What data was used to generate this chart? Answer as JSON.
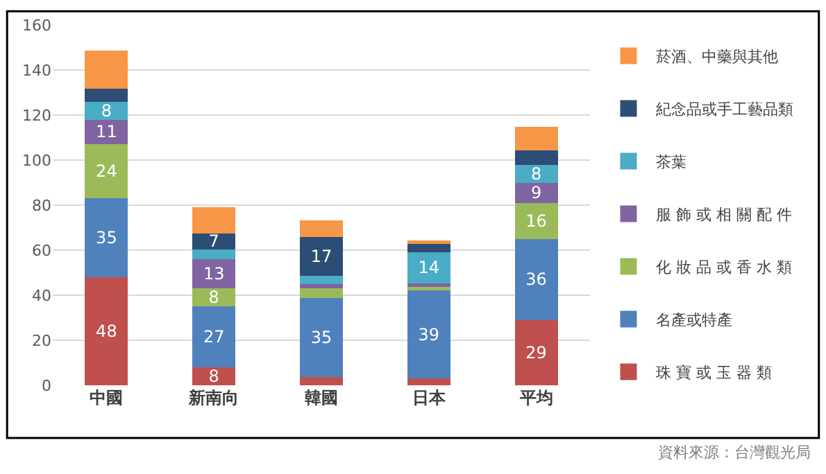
{
  "chart_data": {
    "type": "bar",
    "stacked": true,
    "categories": [
      "中國",
      "新南向",
      "韓國",
      "日本",
      "平均"
    ],
    "series": [
      {
        "name": "珠 寶 或 玉 器 類",
        "color": "#c0504d",
        "values": [
          48,
          8,
          3.7,
          3.1,
          29
        ],
        "value_labels": [
          "48",
          "8",
          null,
          null,
          "29"
        ]
      },
      {
        "name": "名產或特產",
        "color": "#4f81bd",
        "values": [
          35,
          27,
          35,
          39,
          36
        ],
        "value_labels": [
          "35",
          "27",
          "35",
          "39",
          "36"
        ]
      },
      {
        "name": "化 妝 品 或 香 水 類",
        "color": "#9bbb59",
        "values": [
          24,
          8,
          4.4,
          1.5,
          16
        ],
        "value_labels": [
          "24",
          "8",
          null,
          null,
          "16"
        ]
      },
      {
        "name": "服 飾 或 相 關 配 件",
        "color": "#8064a2",
        "values": [
          11,
          13,
          1.8,
          1.6,
          9
        ],
        "value_labels": [
          "11",
          "13",
          null,
          null,
          "9"
        ]
      },
      {
        "name": "茶葉",
        "color": "#4bacc6",
        "values": [
          8,
          4.4,
          3.8,
          14,
          8
        ],
        "value_labels": [
          "8",
          null,
          null,
          "14",
          "8"
        ]
      },
      {
        "name": "紀念品或手工藝品類",
        "color": "#2c4d75",
        "values": [
          5.7,
          7,
          17,
          3.8,
          6.2
        ],
        "value_labels": [
          null,
          "7",
          "17",
          null,
          null
        ]
      },
      {
        "name": "菸酒、中藥與其他",
        "color": "#f79646",
        "values": [
          16.8,
          11.8,
          7.4,
          1.2,
          10.6
        ],
        "value_labels": [
          null,
          null,
          null,
          null,
          null
        ]
      }
    ],
    "ylim": [
      0,
      160
    ],
    "yticks": [
      0,
      20,
      40,
      60,
      80,
      100,
      120,
      140,
      160
    ],
    "grid": "y",
    "legend": "right",
    "annotations": [
      "資料來源：台灣觀光局"
    ]
  }
}
